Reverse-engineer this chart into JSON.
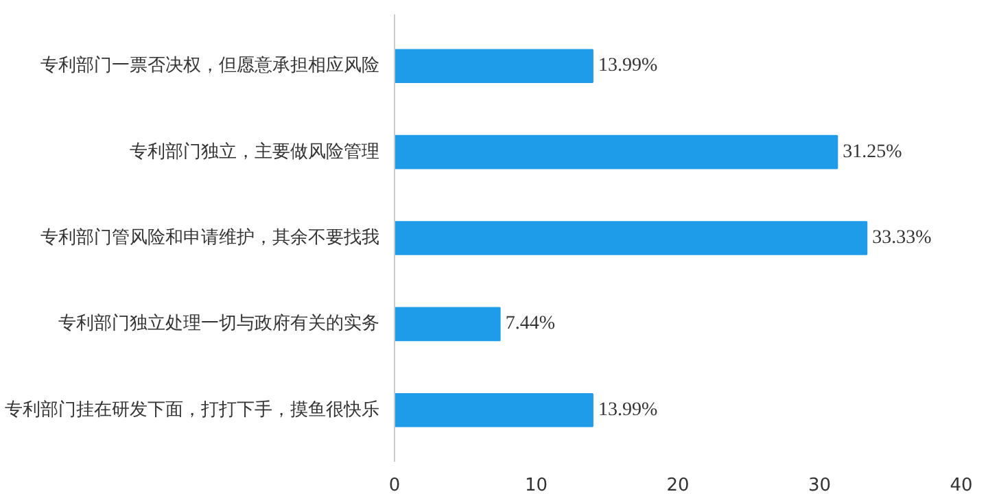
{
  "chart_data": {
    "type": "bar",
    "orientation": "horizontal",
    "categories": [
      "专利部门一票否决权，但愿意承担相应风险",
      "专利部门独立，主要做风险管理",
      "专利部门管风险和申请维护，其余不要找我",
      "专利部门独立处理一切与政府有关的实务",
      "专利部门挂在研发下面，打打下手，摸鱼很快乐"
    ],
    "values": [
      13.99,
      31.25,
      33.33,
      7.44,
      13.99
    ],
    "value_labels": [
      "13.99%",
      "31.25%",
      "33.33%",
      "7.44%",
      "13.99%"
    ],
    "color": "#1e9be9",
    "xlim": [
      0,
      40
    ],
    "xticks": [
      0,
      10,
      20,
      30,
      40
    ],
    "grid": false
  }
}
